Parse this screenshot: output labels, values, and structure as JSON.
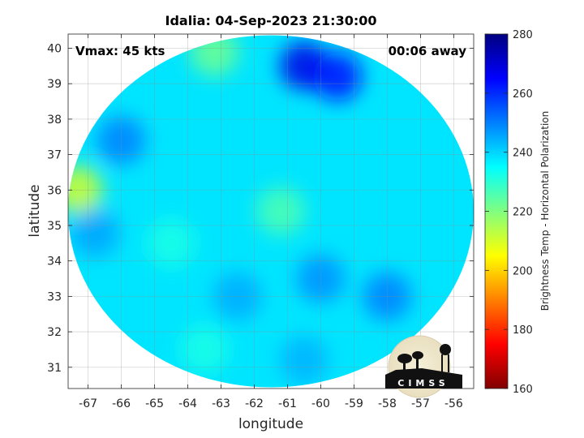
{
  "chart_data": {
    "type": "heatmap",
    "title": "Idalia: 04-Sep-2023 21:30:00",
    "xlabel": "longitude",
    "ylabel": "latitude",
    "xlim": [
      -67.6,
      -55.4
    ],
    "ylim": [
      30.4,
      40.4
    ],
    "xticks": [
      -67,
      -66,
      -65,
      -64,
      -63,
      -62,
      -61,
      -60,
      -59,
      -58,
      -57,
      -56
    ],
    "yticks": [
      31,
      32,
      33,
      34,
      35,
      36,
      37,
      38,
      39,
      40
    ],
    "grid": true,
    "annotations": {
      "vmax": "Vmax: 45 kts",
      "time_away": "00:06 away"
    },
    "colorbar": {
      "label": "Brightness Temp - Horizontal Polarization",
      "range": [
        160,
        280
      ],
      "ticks": [
        160,
        180,
        200,
        220,
        240,
        260,
        280
      ],
      "colormap": "jet"
    },
    "swath": {
      "center": [
        -61.5,
        35.4
      ],
      "background_value": 238
    },
    "features": [
      {
        "lon": -61.2,
        "lat": 35.4,
        "value": 226
      },
      {
        "lon": -63.2,
        "lat": 39.9,
        "value": 222
      },
      {
        "lon": -67.3,
        "lat": 36.0,
        "value": 210
      },
      {
        "lon": -60.5,
        "lat": 39.5,
        "value": 268
      },
      {
        "lon": -59.5,
        "lat": 39.2,
        "value": 264
      },
      {
        "lon": -66.0,
        "lat": 37.4,
        "value": 250
      },
      {
        "lon": -60.0,
        "lat": 33.5,
        "value": 248
      },
      {
        "lon": -58.0,
        "lat": 33.0,
        "value": 250
      },
      {
        "lon": -62.5,
        "lat": 33.0,
        "value": 245
      },
      {
        "lon": -64.5,
        "lat": 34.5,
        "value": 232
      },
      {
        "lon": -63.5,
        "lat": 31.5,
        "value": 232
      },
      {
        "lon": -60.5,
        "lat": 31.2,
        "value": 244
      },
      {
        "lon": -66.8,
        "lat": 34.8,
        "value": 246
      }
    ],
    "logo": "CIMSS"
  }
}
